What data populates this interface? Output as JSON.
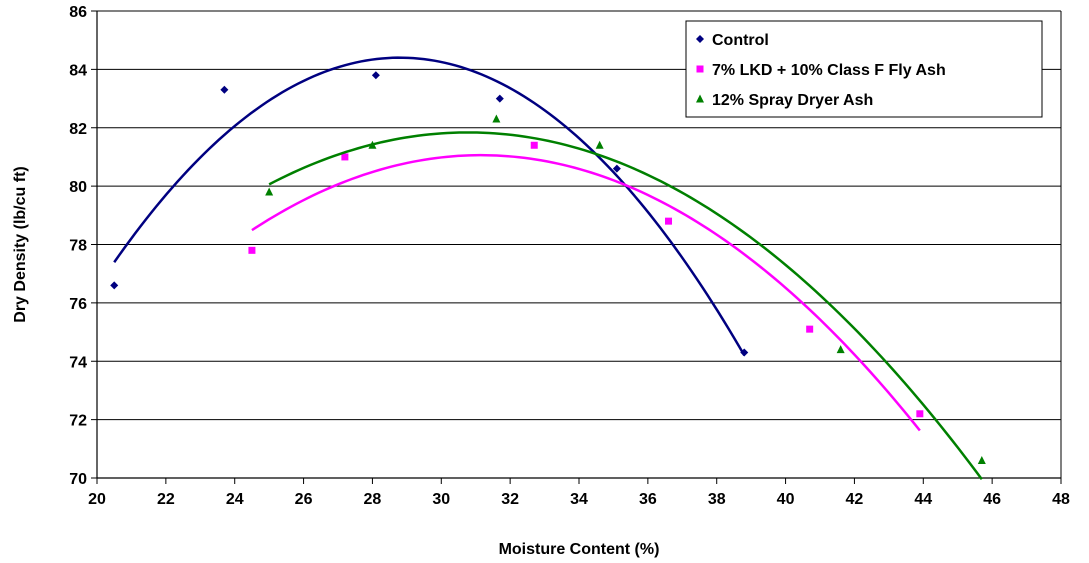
{
  "chart_data": {
    "type": "scatter",
    "title": "",
    "xlabel": "Moisture Content (%)",
    "ylabel": "Dry Density (lb/cu ft)",
    "xlim": [
      20,
      48
    ],
    "ylim": [
      70,
      86
    ],
    "x_ticks": [
      "20",
      "22",
      "24",
      "26",
      "28",
      "30",
      "32",
      "34",
      "36",
      "38",
      "40",
      "42",
      "44",
      "46",
      "48"
    ],
    "y_ticks": [
      "70",
      "72",
      "74",
      "76",
      "78",
      "80",
      "82",
      "84",
      "86"
    ],
    "grid": "horizontal",
    "legend_position": "top-right",
    "series": [
      {
        "name": "Control",
        "marker": "diamond",
        "color": "#000080",
        "points": [
          [
            20.5,
            76.6
          ],
          [
            23.7,
            83.3
          ],
          [
            28.1,
            83.8
          ],
          [
            31.7,
            83.0
          ],
          [
            35.1,
            80.6
          ],
          [
            38.8,
            74.3
          ]
        ],
        "trendline": "polynomial-2",
        "trend_range": [
          20.5,
          38.8
        ]
      },
      {
        "name": "7% LKD + 10% Class F Fly Ash",
        "marker": "square",
        "color": "#ff00ff",
        "points": [
          [
            24.5,
            77.8
          ],
          [
            27.2,
            81.0
          ],
          [
            32.7,
            81.4
          ],
          [
            36.6,
            78.8
          ],
          [
            40.7,
            75.1
          ],
          [
            43.9,
            72.2
          ]
        ],
        "trendline": "polynomial-2",
        "trend_range": [
          24.5,
          43.9
        ]
      },
      {
        "name": "12% Spray Dryer Ash",
        "marker": "triangle",
        "color": "#008000",
        "points": [
          [
            25.0,
            79.8
          ],
          [
            28.0,
            81.4
          ],
          [
            31.6,
            82.3
          ],
          [
            34.6,
            81.4
          ],
          [
            41.6,
            74.4
          ],
          [
            45.7,
            70.6
          ]
        ],
        "trendline": "polynomial-2",
        "trend_range": [
          25.0,
          45.7
        ]
      }
    ]
  }
}
